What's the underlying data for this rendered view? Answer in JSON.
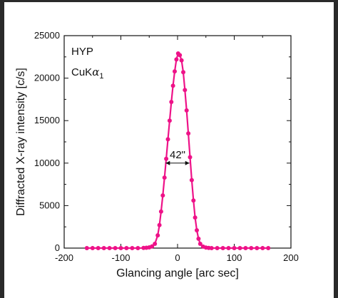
{
  "chart_data": {
    "type": "line",
    "xlabel": "Glancing angle [arc sec]",
    "ylabel": "Diffracted X-ray intensity [c/s]",
    "xlim": [
      -200,
      200
    ],
    "ylim": [
      0,
      25000
    ],
    "xticks": [
      "-200",
      "-100",
      "0",
      "100",
      "200"
    ],
    "yticks": [
      "0",
      "5000",
      "10000",
      "15000",
      "20000",
      "25000"
    ],
    "annotations": {
      "sample": "HYP",
      "radiation_main": "CuK",
      "radiation_greek": "α",
      "radiation_sub": "1",
      "fwhm": "42\""
    },
    "fwhm_range": [
      -21,
      21
    ],
    "fwhm_y": 10000,
    "color": "#ee1288",
    "grid": false,
    "series": [
      {
        "x": [
          -160,
          -150,
          -140,
          -130,
          -120,
          -110,
          -100,
          -90,
          -80,
          -70,
          -60,
          -55,
          -50,
          -45,
          -40,
          -35,
          -32,
          -29,
          -26,
          -23,
          -20,
          -17,
          -14,
          -11,
          -8,
          -5,
          -2,
          1,
          4,
          7,
          10,
          13,
          16,
          19,
          22,
          25,
          28,
          31,
          34,
          37,
          40,
          45,
          50,
          55,
          60,
          70,
          80,
          90,
          100,
          110,
          120,
          130,
          140,
          150,
          160
        ],
        "y": [
          0,
          0,
          0,
          0,
          0,
          0,
          0,
          0,
          0,
          0,
          20,
          40,
          80,
          200,
          500,
          1500,
          2700,
          4300,
          6200,
          8300,
          10500,
          12800,
          15000,
          17200,
          19100,
          20800,
          22200,
          22900,
          22700,
          22100,
          20700,
          18600,
          16200,
          13500,
          10700,
          8000,
          5600,
          3600,
          2100,
          1100,
          500,
          180,
          60,
          20,
          0,
          0,
          0,
          0,
          0,
          0,
          0,
          0,
          0,
          0,
          0
        ]
      }
    ]
  }
}
